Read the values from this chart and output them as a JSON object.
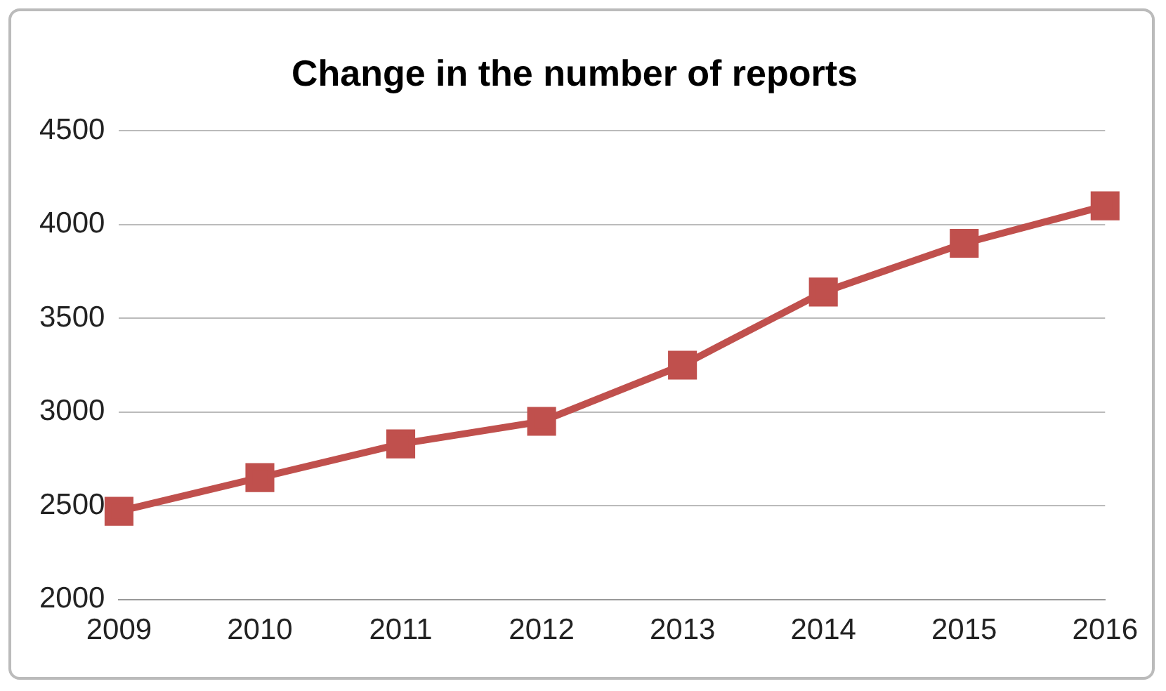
{
  "chart_data": {
    "type": "line",
    "title": "Change in the number of reports",
    "categories": [
      "2009",
      "2010",
      "2011",
      "2012",
      "2013",
      "2014",
      "2015",
      "2016"
    ],
    "series": [
      {
        "color": "#c0504d",
        "values": [
          2470,
          2650,
          2830,
          2950,
          3250,
          3640,
          3900,
          4100
        ]
      }
    ],
    "ylim": [
      2000,
      4500
    ],
    "yticks": [
      2000,
      2500,
      3000,
      3500,
      4000,
      4500
    ],
    "grid": "y",
    "legend": false,
    "marker": "square",
    "line_style": "solid"
  }
}
